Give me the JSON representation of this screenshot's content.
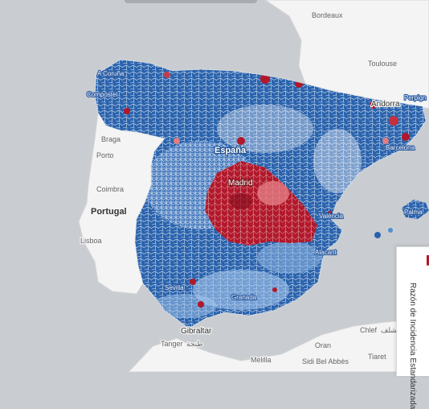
{
  "map": {
    "places": {
      "bordeaux": "Bordeaux",
      "toulouse": "Toulouse",
      "andorra": "Andorra",
      "perpignan": "Perpign",
      "barcelona": "Barcelona",
      "a_coruna": "A Coruña",
      "compostela": "Compostel",
      "braga": "Braga",
      "porto": "Porto",
      "coimbra": "Coimbra",
      "portugal": "Portugal",
      "lisboa": "Lisboa",
      "espana": "España",
      "madrid": "Madrid",
      "valencia": "València",
      "alicante": "Alacant",
      "granada": "Granada",
      "sevilla": "Sevilla",
      "palma": "Palma",
      "gibraltar": "Gibraltar",
      "tanger": "Tanger",
      "tanger_ar": "طنجة",
      "chlef": "Chlef",
      "chlef_ar": "الشلف",
      "oran": "Oran",
      "tiaret": "Tiaret",
      "sidi_bel_abbes": "Sidi Bel Abbès",
      "melilla": "Melilla"
    },
    "colors": {
      "sea": "#c9cdd1",
      "land": "#f4f4f4",
      "high_red": "#b2182b",
      "mid_red": "#e27d84",
      "low_blue": "#2166ac",
      "mid_blue": "#4f8fd0",
      "light_blue": "#a6c8ec",
      "border": "#ffffff"
    }
  },
  "legend": {
    "title": "Razón de Incidencia Estandarizada"
  }
}
